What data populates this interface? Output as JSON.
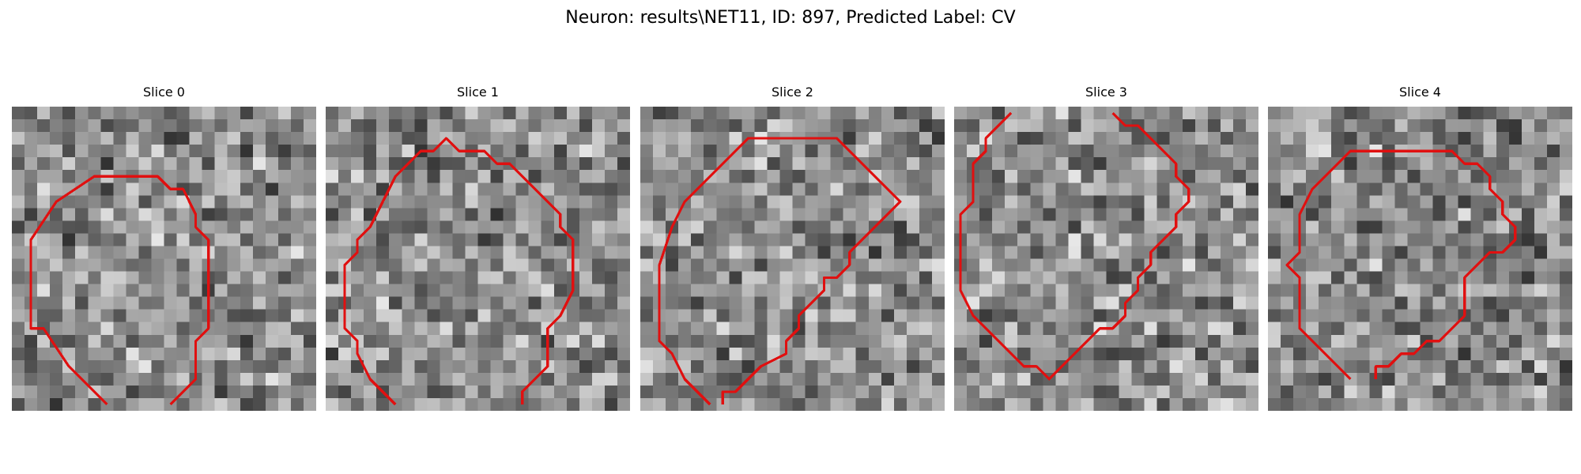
{
  "figure": {
    "title": "Neuron: results\\NET11, ID: 897, Predicted Label: CV"
  },
  "panels": [
    {
      "title": "Slice 0",
      "seed": 11
    },
    {
      "title": "Slice 1",
      "seed": 23
    },
    {
      "title": "Slice 2",
      "seed": 37
    },
    {
      "title": "Slice 3",
      "seed": 41
    },
    {
      "title": "Slice 4",
      "seed": 59
    }
  ],
  "colors": {
    "contour": "#e01010",
    "background": "#ffffff"
  },
  "contour_polylines": [
    [
      [
        7,
        23
      ],
      [
        4,
        20
      ],
      [
        2,
        17
      ],
      [
        1,
        17
      ],
      [
        1,
        10
      ],
      [
        3,
        7
      ],
      [
        6,
        5
      ],
      [
        11,
        5
      ],
      [
        12,
        6
      ],
      [
        13,
        6
      ],
      [
        14,
        8
      ],
      [
        14,
        9
      ],
      [
        15,
        10
      ],
      [
        15,
        17
      ],
      [
        14,
        18
      ],
      [
        14,
        21
      ],
      [
        12,
        23
      ]
    ],
    [
      [
        5,
        23
      ],
      [
        3,
        21
      ],
      [
        2,
        19
      ],
      [
        2,
        18
      ],
      [
        1,
        17
      ],
      [
        1,
        12
      ],
      [
        2,
        11
      ],
      [
        2,
        10
      ],
      [
        3,
        9
      ],
      [
        4,
        7
      ],
      [
        5,
        5
      ],
      [
        6,
        4
      ],
      [
        7,
        3
      ],
      [
        8,
        3
      ],
      [
        9,
        2
      ],
      [
        10,
        3
      ],
      [
        12,
        3
      ],
      [
        13,
        4
      ],
      [
        14,
        4
      ],
      [
        15,
        5
      ],
      [
        16,
        6
      ],
      [
        17,
        7
      ],
      [
        18,
        8
      ],
      [
        18,
        9
      ],
      [
        19,
        10
      ],
      [
        19,
        14
      ],
      [
        18,
        16
      ],
      [
        17,
        17
      ],
      [
        17,
        20
      ],
      [
        16,
        21
      ],
      [
        15,
        22
      ],
      [
        15,
        23
      ]
    ],
    [
      [
        5,
        23
      ],
      [
        3,
        21
      ],
      [
        2,
        19
      ],
      [
        1,
        18
      ],
      [
        1,
        12
      ],
      [
        2,
        9
      ],
      [
        3,
        7
      ],
      [
        5,
        5
      ],
      [
        6,
        4
      ],
      [
        8,
        2
      ],
      [
        15,
        2
      ],
      [
        16,
        3
      ],
      [
        18,
        5
      ],
      [
        19,
        6
      ],
      [
        20,
        7
      ],
      [
        19,
        8
      ],
      [
        18,
        9
      ],
      [
        17,
        10
      ],
      [
        16,
        11
      ],
      [
        16,
        12
      ],
      [
        15,
        13
      ],
      [
        14,
        13
      ],
      [
        14,
        14
      ],
      [
        13,
        15
      ],
      [
        12,
        16
      ],
      [
        12,
        17
      ],
      [
        11,
        18
      ],
      [
        11,
        19
      ],
      [
        9,
        20
      ],
      [
        8,
        21
      ],
      [
        7,
        22
      ],
      [
        6,
        22
      ],
      [
        6,
        23
      ]
    ],
    [
      [
        4,
        0
      ],
      [
        3,
        1
      ],
      [
        2,
        2
      ],
      [
        2,
        3
      ],
      [
        1,
        4
      ],
      [
        1,
        7
      ],
      [
        0,
        8
      ],
      [
        0,
        14
      ],
      [
        1,
        16
      ],
      [
        2,
        17
      ],
      [
        3,
        18
      ],
      [
        4,
        19
      ],
      [
        5,
        20
      ],
      [
        6,
        20
      ],
      [
        7,
        21
      ],
      [
        8,
        20
      ],
      [
        9,
        19
      ],
      [
        10,
        18
      ],
      [
        11,
        17
      ],
      [
        12,
        17
      ],
      [
        13,
        16
      ],
      [
        13,
        15
      ],
      [
        14,
        14
      ],
      [
        14,
        13
      ],
      [
        15,
        12
      ],
      [
        15,
        11
      ],
      [
        16,
        10
      ],
      [
        17,
        9
      ],
      [
        17,
        8
      ],
      [
        18,
        7
      ],
      [
        18,
        6
      ],
      [
        17,
        5
      ],
      [
        17,
        4
      ],
      [
        16,
        3
      ],
      [
        15,
        2
      ],
      [
        14,
        1
      ],
      [
        13,
        1
      ],
      [
        12,
        0
      ]
    ],
    [
      [
        6,
        21
      ],
      [
        4,
        19
      ],
      [
        3,
        18
      ],
      [
        2,
        17
      ],
      [
        2,
        13
      ],
      [
        1,
        12
      ],
      [
        2,
        11
      ],
      [
        2,
        8
      ],
      [
        3,
        6
      ],
      [
        5,
        4
      ],
      [
        6,
        3
      ],
      [
        14,
        3
      ],
      [
        15,
        4
      ],
      [
        16,
        4
      ],
      [
        17,
        5
      ],
      [
        17,
        6
      ],
      [
        18,
        7
      ],
      [
        18,
        8
      ],
      [
        19,
        9
      ],
      [
        19,
        10
      ],
      [
        18,
        11
      ],
      [
        17,
        11
      ],
      [
        16,
        12
      ],
      [
        15,
        13
      ],
      [
        15,
        16
      ],
      [
        14,
        17
      ],
      [
        13,
        18
      ],
      [
        12,
        18
      ],
      [
        11,
        19
      ],
      [
        10,
        19
      ],
      [
        9,
        20
      ],
      [
        8,
        20
      ],
      [
        8,
        21
      ]
    ]
  ]
}
